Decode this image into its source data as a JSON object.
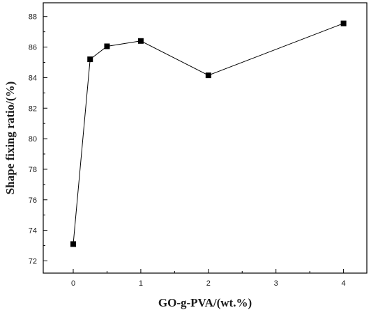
{
  "chart_data": {
    "type": "line",
    "title": "",
    "xlabel": "GO-g-PVA/(wt.%)",
    "ylabel": "Shape fixing ratio/(%)",
    "x_tick_labels": [
      "0",
      "1",
      "2",
      "3",
      "4"
    ],
    "y_tick_labels": [
      "72",
      "74",
      "76",
      "78",
      "80",
      "82",
      "84",
      "86",
      "88"
    ],
    "ylim": [
      71.2,
      88.9
    ],
    "grid": false,
    "legend": "none",
    "line_color": "#000000",
    "marker": "square",
    "series": [
      {
        "points": [
          {
            "x": 0,
            "y": 73.1
          },
          {
            "x": 0.25,
            "y": 85.2
          },
          {
            "x": 0.5,
            "y": 86.05
          },
          {
            "x": 1,
            "y": 86.4
          },
          {
            "x": 2,
            "y": 84.15
          },
          {
            "x": 4,
            "y": 87.55
          }
        ]
      }
    ]
  }
}
